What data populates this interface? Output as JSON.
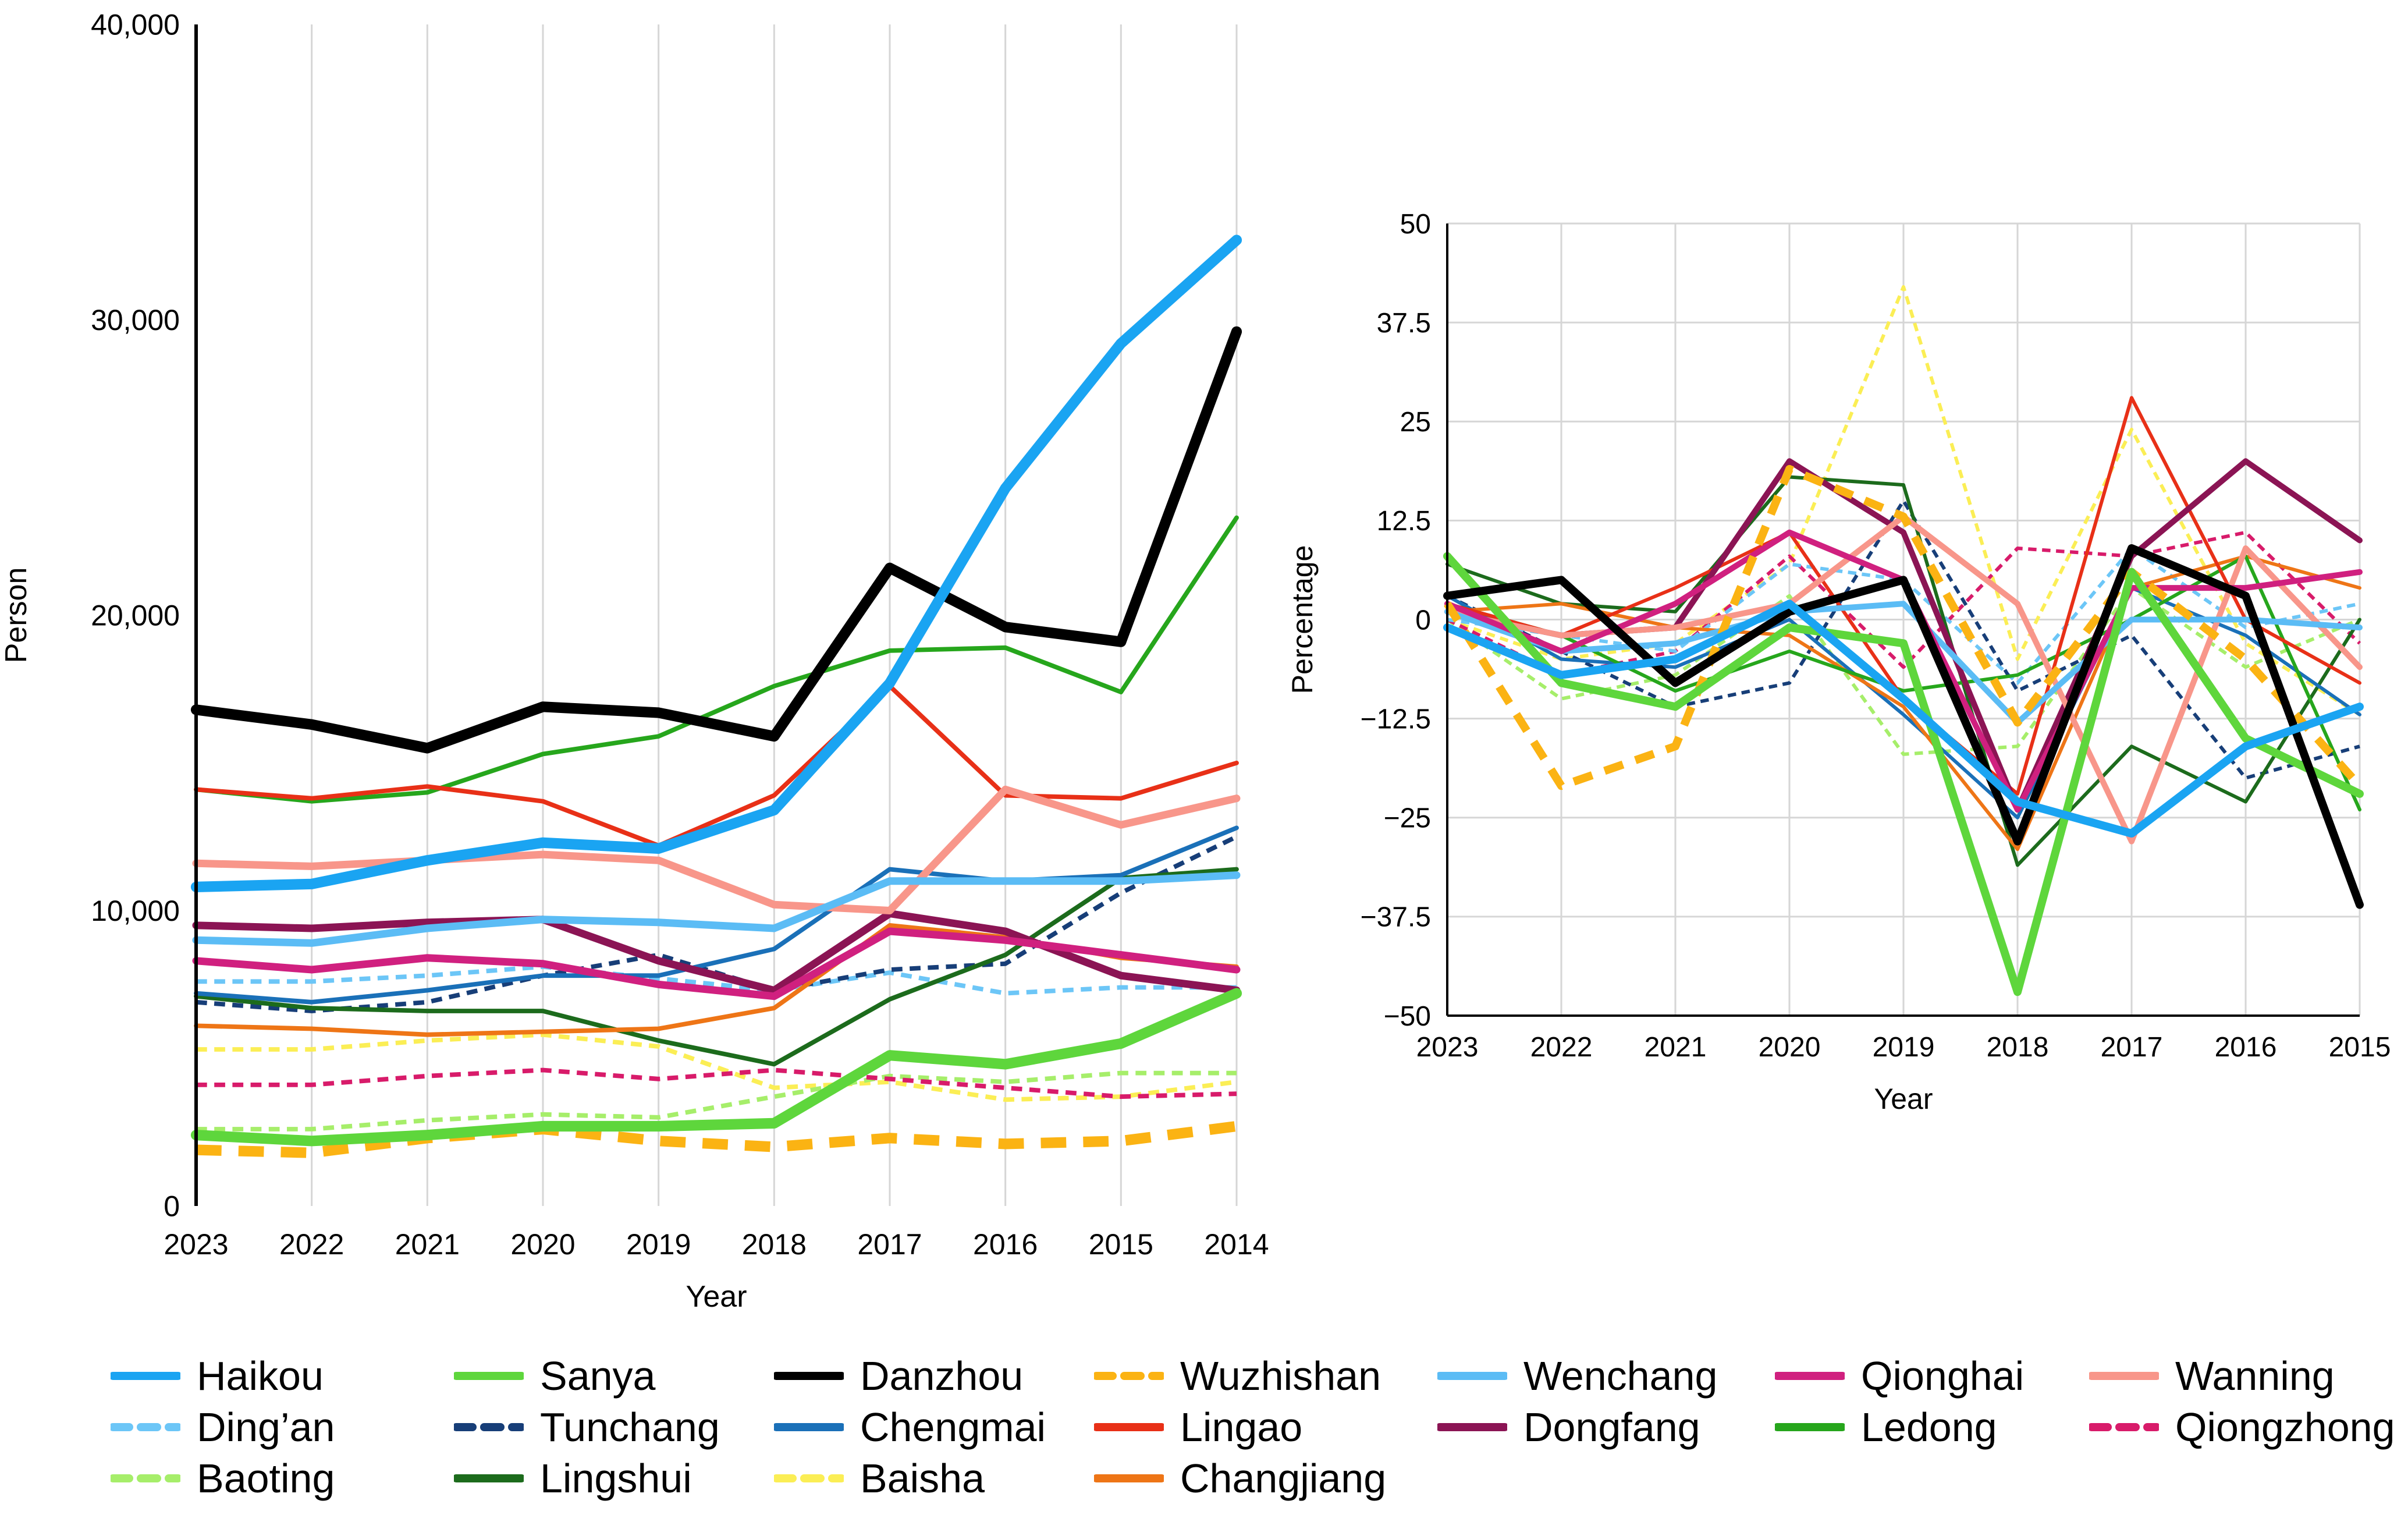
{
  "chart_data": [
    {
      "type": "line",
      "title": "",
      "xlabel": "Year",
      "ylabel": "Person",
      "x": [
        "2023",
        "2022",
        "2021",
        "2020",
        "2019",
        "2018",
        "2017",
        "2016",
        "2015",
        "2014"
      ],
      "ylim": [
        0,
        40000
      ],
      "yticks": [
        0,
        10000,
        20000,
        30000,
        40000
      ],
      "ytick_labels": [
        "0",
        "10,000",
        "20,000",
        "30,000",
        "40,000"
      ],
      "grid": "vertical",
      "series": [
        {
          "name": "Haikou",
          "values": [
            10800,
            10900,
            11700,
            12300,
            12100,
            13400,
            17700,
            24300,
            29200,
            32700
          ]
        },
        {
          "name": "Sanya",
          "values": [
            2400,
            2200,
            2400,
            2700,
            2700,
            2800,
            5100,
            4800,
            5500,
            7200
          ]
        },
        {
          "name": "Danzhou",
          "values": [
            16800,
            16300,
            15500,
            16900,
            16700,
            15900,
            21600,
            19600,
            19100,
            29600
          ]
        },
        {
          "name": "Wuzhishan",
          "values": [
            1900,
            1800,
            2300,
            2600,
            2200,
            2000,
            2300,
            2100,
            2200,
            2700
          ]
        },
        {
          "name": "Wenchang",
          "values": [
            9000,
            8900,
            9400,
            9700,
            9600,
            9400,
            11000,
            11000,
            11000,
            11200
          ]
        },
        {
          "name": "Qionghai",
          "values": [
            8300,
            8000,
            8400,
            8200,
            7500,
            7100,
            9300,
            9000,
            8500,
            8000
          ]
        },
        {
          "name": "Wanning",
          "values": [
            11600,
            11500,
            11700,
            11900,
            11700,
            10200,
            10000,
            14100,
            12900,
            13800
          ]
        },
        {
          "name": "Ding'an",
          "values": [
            7600,
            7600,
            7800,
            8100,
            7700,
            7300,
            7900,
            7200,
            7400,
            7400
          ]
        },
        {
          "name": "Tunchang",
          "values": [
            6900,
            6600,
            6900,
            7800,
            8500,
            7300,
            8000,
            8200,
            10600,
            12500
          ]
        },
        {
          "name": "Chengmai",
          "values": [
            7200,
            6900,
            7300,
            7800,
            7800,
            8700,
            11400,
            11000,
            11200,
            12800
          ]
        },
        {
          "name": "Lingao",
          "values": [
            14100,
            13800,
            14200,
            13700,
            12200,
            13900,
            17600,
            13900,
            13800,
            15000
          ]
        },
        {
          "name": "Dongfang",
          "values": [
            9500,
            9400,
            9600,
            9700,
            8300,
            7300,
            9900,
            9300,
            7800,
            7300
          ]
        },
        {
          "name": "Ledong",
          "values": [
            14100,
            13700,
            14000,
            15300,
            15900,
            17600,
            18800,
            18900,
            17400,
            23300
          ]
        },
        {
          "name": "Qiongzhong",
          "values": [
            4100,
            4100,
            4400,
            4600,
            4300,
            4600,
            4300,
            4000,
            3700,
            3800
          ]
        },
        {
          "name": "Baoting",
          "values": [
            2600,
            2600,
            2900,
            3100,
            3000,
            3700,
            4400,
            4200,
            4500,
            4500
          ]
        },
        {
          "name": "Lingshui",
          "values": [
            7100,
            6700,
            6600,
            6600,
            5600,
            4800,
            7000,
            8500,
            11100,
            11400
          ]
        },
        {
          "name": "Baisha",
          "values": [
            5300,
            5300,
            5600,
            5800,
            5400,
            4000,
            4200,
            3600,
            3700,
            4200
          ]
        },
        {
          "name": "Changjiang",
          "values": [
            6100,
            6000,
            5800,
            5900,
            6000,
            6700,
            9500,
            9100,
            8400,
            8100
          ]
        }
      ]
    },
    {
      "type": "line",
      "title": "",
      "xlabel": "Year",
      "ylabel": "Percentage",
      "x": [
        "2023",
        "2022",
        "2021",
        "2020",
        "2019",
        "2018",
        "2017",
        "2016",
        "2015"
      ],
      "ylim": [
        -50,
        50
      ],
      "yticks": [
        -50,
        -37.5,
        -25,
        -12.5,
        0,
        12.5,
        25,
        37.5,
        50
      ],
      "ytick_labels": [
        "−50",
        "−37.5",
        "−25",
        "−12.5",
        "0",
        "12.5",
        "25",
        "37.5",
        "50"
      ],
      "grid": "both",
      "series": [
        {
          "name": "Haikou",
          "values": [
            -1,
            -7,
            -5,
            2,
            -10,
            -23,
            -27,
            -16,
            -11
          ]
        },
        {
          "name": "Sanya",
          "values": [
            8,
            -8,
            -11,
            -1,
            -3,
            -47,
            6,
            -15,
            -22
          ]
        },
        {
          "name": "Danzhou",
          "values": [
            3,
            5,
            -8,
            1,
            5,
            -28,
            9,
            3,
            -36
          ]
        },
        {
          "name": "Wuzhishan",
          "values": [
            2,
            -21,
            -16,
            19,
            13,
            -13,
            6,
            -5,
            -21
          ]
        },
        {
          "name": "Wenchang",
          "values": [
            1,
            -4,
            -3,
            1,
            2,
            -13,
            0,
            0,
            -1
          ]
        },
        {
          "name": "Qionghai",
          "values": [
            2,
            -4,
            2,
            11,
            5,
            -24,
            4,
            4,
            6
          ]
        },
        {
          "name": "Wanning",
          "values": [
            1,
            -2,
            -1,
            2,
            13,
            2,
            -28,
            9,
            -6
          ]
        },
        {
          "name": "Ding'an",
          "values": [
            0,
            -2,
            -4,
            7,
            5,
            -8,
            9,
            -1,
            2
          ]
        },
        {
          "name": "Tunchang",
          "values": [
            3,
            -4,
            -11,
            -8,
            15,
            -9,
            -2,
            -20,
            -16
          ]
        },
        {
          "name": "Chengmai",
          "values": [
            3,
            -5,
            -6,
            0,
            -12,
            -25,
            4,
            -2,
            -12
          ]
        },
        {
          "name": "Lingao",
          "values": [
            2,
            -2,
            4,
            11,
            -10,
            -22,
            28,
            0,
            -8
          ]
        },
        {
          "name": "Dongfang",
          "values": [
            1,
            -2,
            -1,
            20,
            11,
            -24,
            8,
            20,
            10
          ]
        },
        {
          "name": "Ledong",
          "values": [
            2,
            -2,
            -9,
            -4,
            -9,
            -7,
            0,
            8,
            -24
          ]
        },
        {
          "name": "Qiongzhong",
          "values": [
            0,
            -7,
            -4,
            8,
            -6,
            9,
            8,
            11,
            -3
          ]
        },
        {
          "name": "Baoting",
          "values": [
            0,
            -10,
            -7,
            3,
            -17,
            -16,
            4,
            -6,
            0
          ]
        },
        {
          "name": "Lingshui",
          "values": [
            7,
            2,
            1,
            18,
            17,
            -31,
            -16,
            -23,
            0
          ]
        },
        {
          "name": "Baisha",
          "values": [
            0,
            -5,
            -3,
            7,
            42,
            -5,
            24,
            -3,
            -12
          ]
        },
        {
          "name": "Changjiang",
          "values": [
            1,
            2,
            -1,
            -2,
            -11,
            -29,
            4,
            8,
            4
          ]
        }
      ]
    }
  ],
  "legend": [
    {
      "name": "Haikou",
      "label": "Haikou",
      "color": "#1aa4f2",
      "dash": "solid",
      "width": 7
    },
    {
      "name": "Sanya",
      "label": "Sanya",
      "color": "#5ed63c",
      "dash": "solid",
      "width": 7
    },
    {
      "name": "Danzhou",
      "label": "Danzhou",
      "color": "#000000",
      "dash": "solid",
      "width": 7
    },
    {
      "name": "Wuzhishan",
      "label": "Wuzhishan",
      "color": "#fbb313",
      "dash": "dash",
      "width": 7
    },
    {
      "name": "Wenchang",
      "label": "Wenchang",
      "color": "#5bbcf5",
      "dash": "solid",
      "width": 5
    },
    {
      "name": "Qionghai",
      "label": "Qionghai",
      "color": "#d0207f",
      "dash": "solid",
      "width": 5
    },
    {
      "name": "Wanning",
      "label": "Wanning",
      "color": "#f8968a",
      "dash": "solid",
      "width": 5
    },
    {
      "name": "Ding'an",
      "label": "Ding’an",
      "color": "#6cc6f7",
      "dash": "dash",
      "width": 3
    },
    {
      "name": "Tunchang",
      "label": "Tunchang",
      "color": "#173e78",
      "dash": "dash",
      "width": 3
    },
    {
      "name": "Chengmai",
      "label": "Chengmai",
      "color": "#1a70b8",
      "dash": "solid",
      "width": 3
    },
    {
      "name": "Lingao",
      "label": "Lingao",
      "color": "#e83017",
      "dash": "solid",
      "width": 3
    },
    {
      "name": "Dongfang",
      "label": "Dongfang",
      "color": "#8b1454",
      "dash": "solid",
      "width": 5
    },
    {
      "name": "Ledong",
      "label": "Ledong",
      "color": "#26a61c",
      "dash": "solid",
      "width": 3
    },
    {
      "name": "Qiongzhong",
      "label": "Qiongzhong",
      "color": "#d81b6a",
      "dash": "dash",
      "width": 3
    },
    {
      "name": "Baoting",
      "label": "Baoting",
      "color": "#a6ee6a",
      "dash": "dash",
      "width": 3
    },
    {
      "name": "Lingshui",
      "label": "Lingshui",
      "color": "#1c6b1c",
      "dash": "solid",
      "width": 3
    },
    {
      "name": "Baisha",
      "label": "Baisha",
      "color": "#fbee55",
      "dash": "dash",
      "width": 3
    },
    {
      "name": "Changjiang",
      "label": "Changjiang",
      "color": "#ee7516",
      "dash": "solid",
      "width": 3
    }
  ]
}
